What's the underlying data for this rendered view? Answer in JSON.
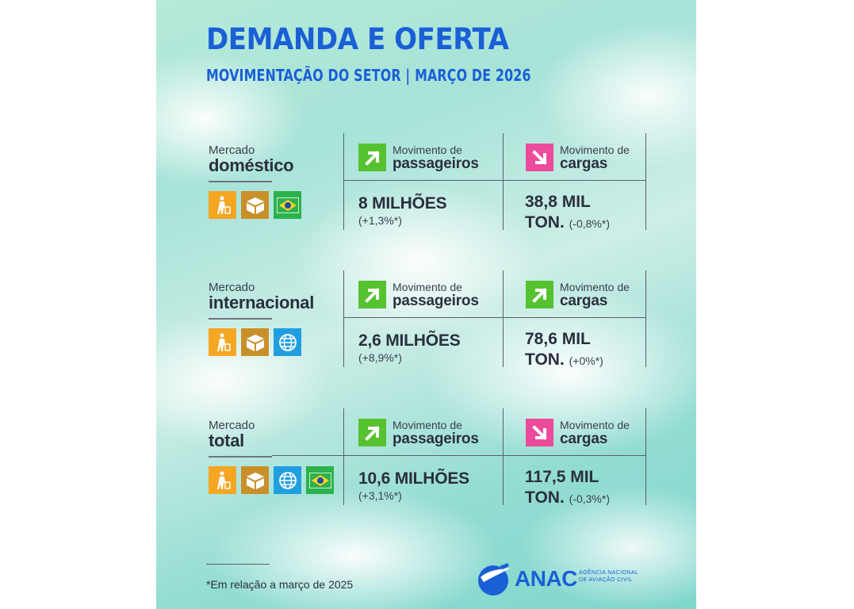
{
  "header": {
    "title": "DEMANDA E OFERTA",
    "subtitle": "MOVIMENTAÇÃO DO SETOR | MARÇO DE 2026"
  },
  "sections": [
    {
      "market_top": "Mercado",
      "market_name": "doméstico",
      "icons": [
        "passenger-icon",
        "cargo-box-icon",
        "brazil-flag-icon"
      ],
      "passengers": {
        "label_top": "Movimento de",
        "label_big": "passageiros",
        "trend": "up",
        "value": "8 MILHÕES",
        "change": "(+1,3%*)"
      },
      "cargo": {
        "label_top": "Movimento de",
        "label_big": "cargas",
        "trend": "down",
        "value_line1": "38,8 MIL",
        "value_line2": "TON.",
        "change": "(-0,8%*)"
      }
    },
    {
      "market_top": "Mercado",
      "market_name": "internacional",
      "icons": [
        "passenger-icon",
        "cargo-box-icon",
        "globe-icon"
      ],
      "passengers": {
        "label_top": "Movimento de",
        "label_big": "passageiros",
        "trend": "up",
        "value": "2,6 MILHÕES",
        "change": "(+8,9%*)"
      },
      "cargo": {
        "label_top": "Movimento de",
        "label_big": "cargas",
        "trend": "up",
        "value_line1": "78,6 MIL",
        "value_line2": "TON.",
        "change": "(+0%*)"
      }
    },
    {
      "market_top": "Mercado",
      "market_name": "total",
      "icons": [
        "passenger-icon",
        "cargo-box-icon",
        "globe-icon",
        "brazil-flag-icon"
      ],
      "passengers": {
        "label_top": "Movimento de",
        "label_big": "passageiros",
        "trend": "up",
        "value": "10,6 MILHÕES",
        "change": "(+3,1%*)"
      },
      "cargo": {
        "label_top": "Movimento de",
        "label_big": "cargas",
        "trend": "down",
        "value_line1": "117,5 MIL",
        "value_line2": "TON.",
        "change": "(-0,3%*)"
      }
    }
  ],
  "colors": {
    "accent_blue": "#1a5fd6",
    "trend_up": "#56c22f",
    "trend_down": "#ec4a9b"
  },
  "footer": {
    "footnote": "*Em relação a março de 2025",
    "logo_text": "ANAC",
    "logo_sub_line1": "AGÊNCIA NACIONAL",
    "logo_sub_line2": "DE AVIAÇÃO CIVIL"
  }
}
